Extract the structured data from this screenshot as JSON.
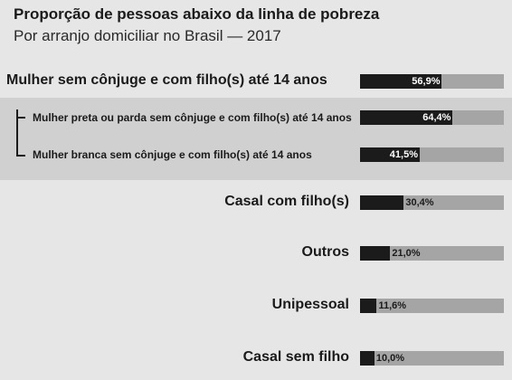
{
  "chart_data": {
    "type": "bar",
    "title": "Proporção de pessoas abaixo da linha de pobreza",
    "subtitle": "Por arranjo domiciliar no Brasil — 2017",
    "xlim": [
      0,
      100
    ],
    "colors": {
      "fill": "#1b1b1b",
      "track": "#a5a5a5",
      "band": "#d0d0d0"
    },
    "categories": [
      "Mulher sem cônjuge e com filho(s) até 14 anos",
      "Mulher preta ou parda sem cônjuge e com filho(s) até 14 anos",
      "Mulher branca sem cônjuge e com filho(s) até 14 anos",
      "Casal com filho(s)",
      "Outros",
      "Unipessoal",
      "Casal sem filho"
    ],
    "values": [
      56.9,
      64.4,
      41.5,
      30.4,
      21.0,
      11.6,
      10.0
    ],
    "value_labels": [
      "56,9%",
      "64,4%",
      "41,5%",
      "30,4%",
      "21,0%",
      "11,6%",
      "10,0%"
    ]
  }
}
